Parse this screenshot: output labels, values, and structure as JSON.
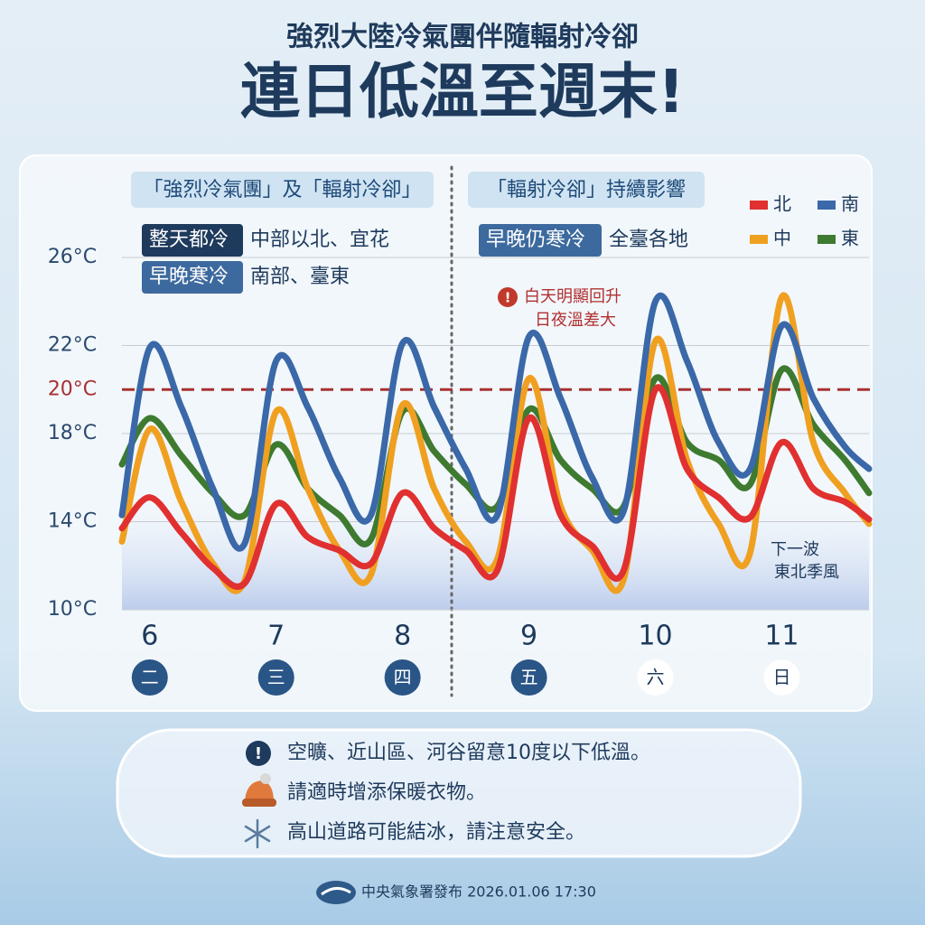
{
  "header": {
    "subtitle": "強烈大陸冷氣團伴隨輻射冷卻",
    "title": "連日低溫至週末!"
  },
  "chart_data": {
    "type": "line",
    "sections": [
      {
        "title": "「強烈冷氣團」及「輻射冷卻」",
        "notes": [
          {
            "tag": "整天都冷",
            "text": "中部以北、宜花"
          },
          {
            "tag": "早晚寒冷",
            "text": "南部、臺東"
          }
        ]
      },
      {
        "title": "「輻射冷卻」持續影響",
        "notes": [
          {
            "tag": "早晚仍寒冷",
            "text": "全臺各地"
          }
        ]
      }
    ],
    "x": [
      5.78,
      6,
      6.25,
      6.5,
      6.75,
      7,
      7.25,
      7.5,
      7.75,
      8,
      8.25,
      8.5,
      8.75,
      9,
      9.25,
      9.5,
      9.75,
      10,
      10.25,
      10.5,
      10.75,
      11,
      11.25,
      11.5,
      11.69
    ],
    "xlim": [
      5.78,
      11.69
    ],
    "xticks": [
      6,
      7,
      8,
      9,
      10,
      11
    ],
    "weekdays": [
      "二",
      "三",
      "四",
      "五",
      "六",
      "日"
    ],
    "ylim": [
      10,
      26
    ],
    "yticks": [
      {
        "value": 10,
        "label": "10°C"
      },
      {
        "value": 14,
        "label": "14°C"
      },
      {
        "value": 18,
        "label": "18°C"
      },
      {
        "value": 22,
        "label": "22°C"
      },
      {
        "value": 26,
        "label": "26°C"
      }
    ],
    "grid": true,
    "reference_line": {
      "value": 20,
      "label": "20°C",
      "color": "#a83232"
    },
    "series": [
      {
        "name": "北",
        "color": "#e03030",
        "values": [
          13.7,
          15.1,
          13.5,
          11.9,
          11.2,
          14.8,
          13.3,
          12.7,
          12.1,
          15.3,
          13.7,
          12.7,
          11.8,
          18.7,
          14.3,
          12.9,
          11.8,
          20.0,
          16.4,
          15.1,
          14.2,
          17.6,
          15.5,
          14.9,
          14.1
        ]
      },
      {
        "name": "南",
        "color": "#3a68a8",
        "values": [
          14.3,
          21.9,
          19.2,
          15.5,
          13.0,
          21.3,
          19.2,
          16.0,
          14.3,
          22.1,
          19.2,
          16.4,
          14.3,
          22.4,
          19.6,
          16.0,
          14.5,
          24.0,
          21.3,
          17.6,
          16.4,
          22.9,
          19.6,
          17.4,
          16.4
        ]
      },
      {
        "name": "中",
        "color": "#f0a020",
        "values": [
          13.1,
          18.2,
          14.9,
          12.1,
          11.3,
          19.0,
          15.5,
          12.7,
          11.6,
          19.3,
          15.5,
          13.1,
          12.3,
          20.5,
          14.7,
          12.7,
          11.4,
          22.2,
          16.8,
          13.9,
          12.6,
          24.2,
          17.6,
          15.3,
          13.9
        ]
      },
      {
        "name": "東",
        "color": "#3e7a30",
        "values": [
          16.6,
          18.7,
          17.0,
          15.3,
          14.3,
          17.5,
          15.5,
          14.3,
          13.2,
          19.0,
          17.2,
          15.7,
          14.7,
          19.1,
          16.8,
          15.5,
          14.7,
          20.5,
          17.6,
          16.8,
          15.7,
          20.9,
          18.4,
          16.8,
          15.3
        ]
      }
    ],
    "annotations": {
      "warm": [
        "白天明顯回升",
        "日夜溫差大"
      ],
      "monsoon": [
        "下一波",
        "東北季風"
      ]
    }
  },
  "notes": [
    "空曠、近山區、河谷留意10度以下低溫。",
    "請適時增添保暖衣物。",
    "高山道路可能結冰，請注意安全。"
  ],
  "footer": "中央氣象署發布 2026.01.06 17:30"
}
